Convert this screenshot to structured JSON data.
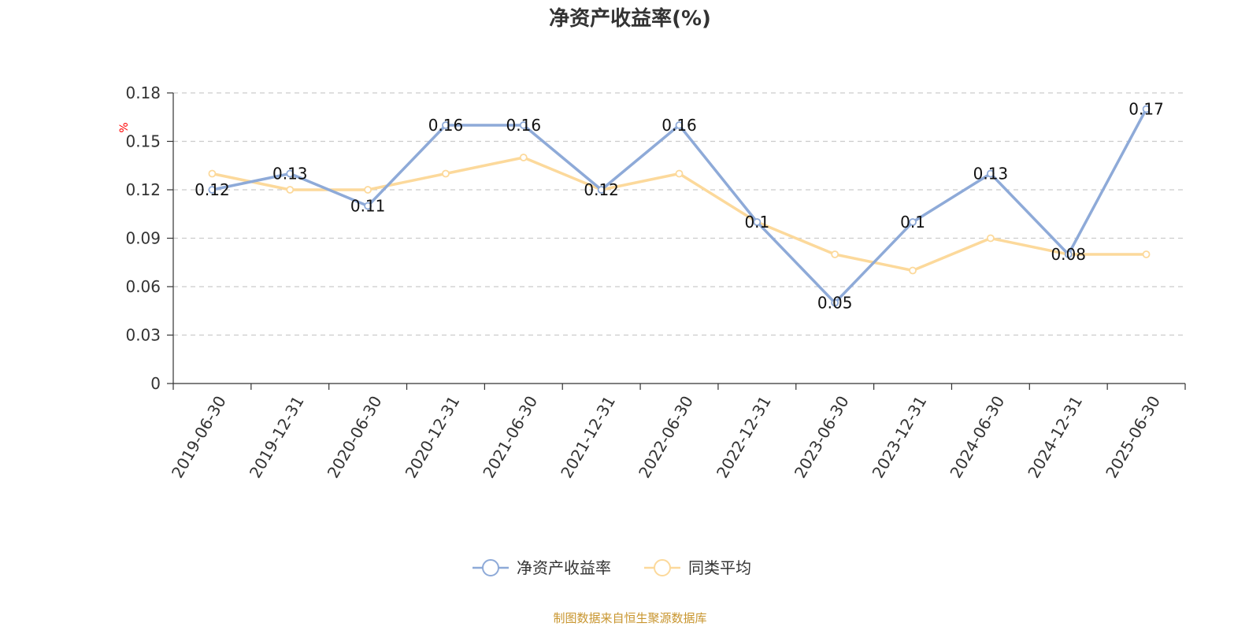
{
  "chart_data": {
    "type": "line",
    "title": "净资产收益率(%)",
    "ylabel": "%",
    "xlabel": "",
    "categories": [
      "2019-06-30",
      "2019-12-31",
      "2020-06-30",
      "2020-12-31",
      "2021-06-30",
      "2021-12-31",
      "2022-06-30",
      "2022-12-31",
      "2023-06-30",
      "2023-12-31",
      "2024-06-30",
      "2024-12-31",
      "2025-06-30"
    ],
    "yticks": [
      "0",
      "0.03",
      "0.06",
      "0.09",
      "0.12",
      "0.15",
      "0.18"
    ],
    "ylim": [
      0,
      0.18
    ],
    "grid": true,
    "legend_position": "bottom",
    "series": [
      {
        "name": "净资产收益率",
        "color": "#8eaad8",
        "values": [
          0.12,
          0.13,
          0.11,
          0.16,
          0.16,
          0.12,
          0.16,
          0.1,
          0.05,
          0.1,
          0.13,
          0.08,
          0.17
        ],
        "data_labels": [
          "0.12",
          "0.13",
          "0.11",
          "0.16",
          "0.16",
          "0.12",
          "0.16",
          "0.1",
          "0.05",
          "0.1",
          "0.13",
          "0.08",
          "0.17"
        ]
      },
      {
        "name": "同类平均",
        "color": "#fcd99b",
        "values": [
          0.13,
          0.12,
          0.12,
          0.13,
          0.14,
          0.12,
          0.13,
          0.1,
          0.08,
          0.07,
          0.09,
          0.08,
          0.08
        ]
      }
    ]
  },
  "source": "制图数据来自恒生聚源数据库"
}
